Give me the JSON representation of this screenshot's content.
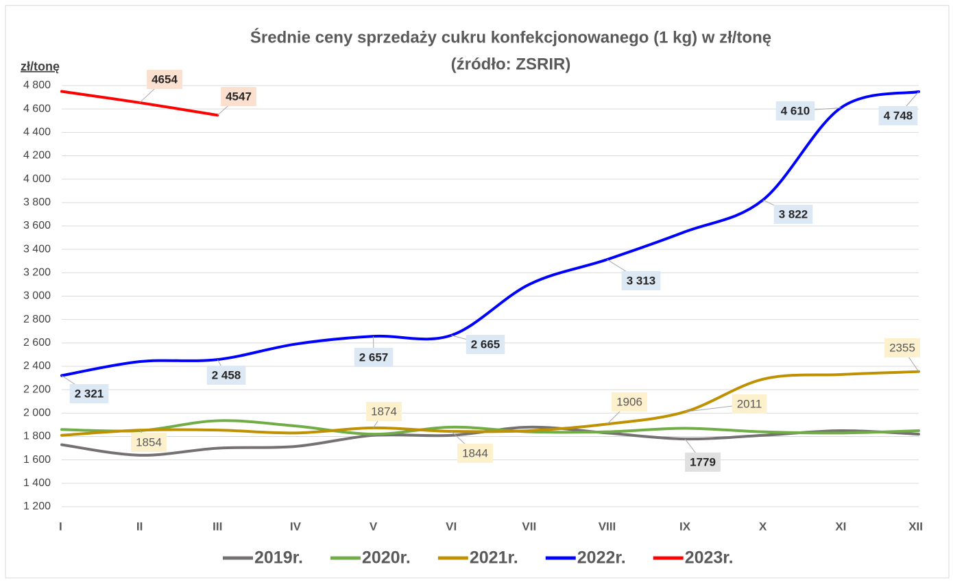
{
  "chart_data": {
    "type": "line",
    "title": "Średnie ceny sprzedaży cukru konfekcjonowanego (1 kg) w zł/tonę",
    "subtitle": "(źródło: ZSRIR)",
    "y_label": "zł/tonę",
    "categories": [
      "I",
      "II",
      "III",
      "IV",
      "V",
      "VI",
      "VII",
      "VIII",
      "IX",
      "X",
      "XI",
      "XII"
    ],
    "ylim": [
      1200,
      4800
    ],
    "yticks": [
      {
        "value": 1200,
        "label": "1 200"
      },
      {
        "value": 1400,
        "label": "1 400"
      },
      {
        "value": 1600,
        "label": "1 600"
      },
      {
        "value": 1800,
        "label": "1 800"
      },
      {
        "value": 2000,
        "label": "2 000"
      },
      {
        "value": 2200,
        "label": "2 200"
      },
      {
        "value": 2400,
        "label": "2 400"
      },
      {
        "value": 2600,
        "label": "2 600"
      },
      {
        "value": 2800,
        "label": "2 800"
      },
      {
        "value": 3000,
        "label": "3 000"
      },
      {
        "value": 3200,
        "label": "3 200"
      },
      {
        "value": 3400,
        "label": "3 400"
      },
      {
        "value": 3600,
        "label": "3 600"
      },
      {
        "value": 3800,
        "label": "3 800"
      },
      {
        "value": 4000,
        "label": "4 000"
      },
      {
        "value": 4200,
        "label": "4 200"
      },
      {
        "value": 4400,
        "label": "4 400"
      },
      {
        "value": 4600,
        "label": "4 600"
      },
      {
        "value": 4800,
        "label": "4 800"
      }
    ],
    "grid": true,
    "legend": "bottom",
    "series": [
      {
        "name": "2019r.",
        "color": "#767171",
        "values": [
          1730,
          1640,
          1700,
          1715,
          1810,
          1810,
          1880,
          1830,
          1779,
          1810,
          1850,
          1820
        ],
        "value_labels": [
          null,
          null,
          null,
          null,
          null,
          null,
          null,
          null,
          "1779",
          null,
          null,
          null
        ]
      },
      {
        "name": "2020r.",
        "color": "#70ad47",
        "values": [
          1860,
          1850,
          1935,
          1890,
          1820,
          1880,
          1840,
          1840,
          1870,
          1840,
          1830,
          1850
        ],
        "value_labels": [
          null,
          null,
          null,
          null,
          null,
          null,
          null,
          null,
          null,
          null,
          null,
          null
        ]
      },
      {
        "name": "2021r.",
        "color": "#bf9000",
        "values": [
          1810,
          1854,
          1855,
          1830,
          1874,
          1844,
          1850,
          1906,
          2011,
          2290,
          2330,
          2355
        ],
        "value_labels": [
          null,
          "1854",
          null,
          null,
          "1874",
          "1844",
          null,
          "1906",
          "2011",
          null,
          null,
          "2355"
        ]
      },
      {
        "name": "2022r.",
        "color": "#0000ff",
        "values": [
          2321,
          2440,
          2458,
          2590,
          2657,
          2665,
          3100,
          3313,
          3550,
          3822,
          4610,
          4748
        ],
        "value_labels": [
          "2 321",
          null,
          "2 458",
          null,
          "2 657",
          "2 665",
          null,
          "3 313",
          null,
          "3 822",
          "4 610",
          "4 748"
        ]
      },
      {
        "name": "2023r.",
        "color": "#ff0000",
        "values": [
          4750,
          4654,
          4547,
          null,
          null,
          null,
          null,
          null,
          null,
          null,
          null,
          null
        ],
        "value_labels": [
          null,
          "4654",
          "4547",
          null,
          null,
          null,
          null,
          null,
          null,
          null,
          null,
          null
        ]
      }
    ]
  }
}
